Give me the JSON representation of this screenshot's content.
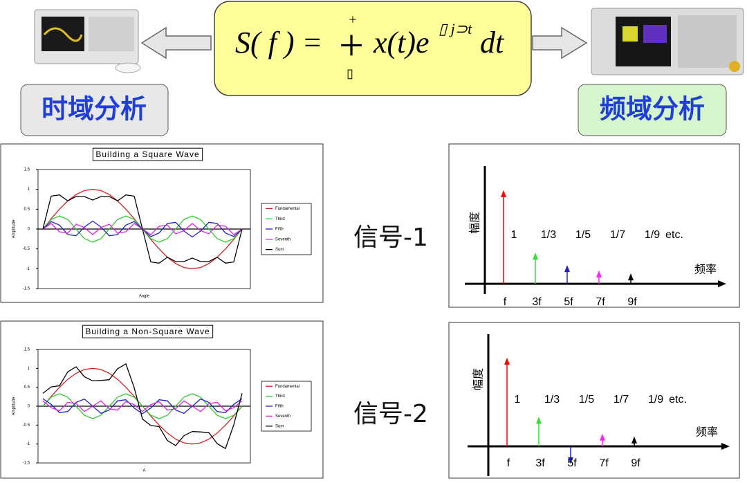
{
  "header": {
    "formula": {
      "lhs": "S( f ) =",
      "integral": "+",
      "upper": "+",
      "lower": "▯",
      "integrand": "x(t)e",
      "exponent": "▯ j⊃t",
      "differential": "dt"
    },
    "time_domain": "时域分析",
    "frequency_domain": "频域分析"
  },
  "signal_labels": [
    "信号-1",
    "信号-2"
  ],
  "chart_data": [
    {
      "type": "line",
      "title": "Building a Square Wave",
      "x_label": "Angle",
      "y_label": "Amplitude",
      "x": [
        0,
        15,
        30,
        45,
        60,
        75,
        90,
        105,
        120,
        135,
        150,
        165,
        180,
        195,
        210,
        225,
        240,
        255,
        270,
        285,
        300,
        315,
        330,
        345,
        360
      ],
      "xlim": [
        0,
        360
      ],
      "ylim": [
        -1.5,
        1.5
      ],
      "yticks": [
        1.5,
        1,
        0.5,
        0,
        -0.5,
        -1,
        -1.5
      ],
      "legend": "right",
      "series": [
        {
          "name": "Fundamental",
          "color": "#d62020",
          "values": [
            0,
            0.26,
            0.5,
            0.71,
            0.87,
            0.97,
            1,
            0.97,
            0.87,
            0.71,
            0.5,
            0.26,
            0,
            -0.26,
            -0.5,
            -0.71,
            -0.87,
            -0.97,
            -1,
            -0.97,
            -0.87,
            -0.71,
            -0.5,
            -0.26,
            0
          ]
        },
        {
          "name": "Third",
          "color": "#33cc33",
          "values": [
            0,
            0.24,
            0.33,
            0.24,
            0,
            -0.24,
            -0.33,
            -0.24,
            0,
            0.24,
            0.33,
            0.24,
            0,
            -0.24,
            -0.33,
            -0.24,
            0,
            0.24,
            0.33,
            0.24,
            0,
            -0.24,
            -0.33,
            -0.24,
            0
          ]
        },
        {
          "name": "Fifth",
          "color": "#2020c0",
          "values": [
            0,
            0.19,
            0.1,
            -0.14,
            -0.17,
            0.05,
            0.2,
            0.05,
            -0.17,
            -0.14,
            0.1,
            0.19,
            0,
            -0.19,
            -0.1,
            0.14,
            0.17,
            -0.05,
            -0.2,
            -0.05,
            0.17,
            0.14,
            -0.1,
            -0.19,
            0
          ]
        },
        {
          "name": "Seventh",
          "color": "#dd22dd",
          "values": [
            0,
            0.14,
            -0.07,
            -0.1,
            0.12,
            0.04,
            -0.14,
            0.04,
            0.12,
            -0.1,
            -0.07,
            0.14,
            0,
            -0.14,
            0.07,
            0.1,
            -0.12,
            -0.04,
            0.14,
            -0.04,
            -0.12,
            0.1,
            0.07,
            -0.14,
            0
          ]
        },
        {
          "name": "Sum",
          "color": "#000000",
          "values": [
            0,
            0.83,
            0.86,
            0.71,
            0.82,
            0.82,
            0.73,
            0.82,
            0.82,
            0.71,
            0.86,
            0.83,
            0,
            -0.83,
            -0.86,
            -0.71,
            -0.82,
            -0.82,
            -0.73,
            -0.82,
            -0.82,
            -0.71,
            -0.86,
            -0.83,
            0
          ]
        }
      ]
    },
    {
      "type": "line",
      "title": "Building a Non-Square Wave",
      "x_label": "A",
      "y_label": "Amplitude",
      "x": [
        0,
        15,
        30,
        45,
        60,
        75,
        90,
        105,
        120,
        135,
        150,
        165,
        180,
        195,
        210,
        225,
        240,
        255,
        270,
        285,
        300,
        315,
        330,
        345,
        360
      ],
      "xlim": [
        0,
        360
      ],
      "ylim": [
        -1.5,
        1.5
      ],
      "yticks": [
        1.5,
        1,
        0.5,
        0,
        -0.5,
        -1,
        -1.5
      ],
      "legend": "right",
      "series": [
        {
          "name": "Fundamental",
          "color": "#d62020",
          "values": [
            0,
            0.26,
            0.5,
            0.71,
            0.87,
            0.97,
            1,
            0.97,
            0.87,
            0.71,
            0.5,
            0.26,
            0,
            -0.26,
            -0.5,
            -0.71,
            -0.87,
            -0.97,
            -1,
            -0.97,
            -0.87,
            -0.71,
            -0.5,
            -0.26,
            0
          ]
        },
        {
          "name": "Third",
          "color": "#33cc33",
          "values": [
            0,
            0.24,
            0.33,
            0.24,
            0,
            -0.24,
            -0.33,
            -0.24,
            0,
            0.24,
            0.33,
            0.24,
            0,
            -0.24,
            -0.33,
            -0.24,
            0,
            0.24,
            0.33,
            0.24,
            0,
            -0.24,
            -0.33,
            -0.24,
            0
          ]
        },
        {
          "name": "Fifth",
          "color": "#2020c0",
          "values": [
            0.2,
            0.05,
            -0.17,
            -0.14,
            0.1,
            0.19,
            0,
            -0.19,
            -0.1,
            0.14,
            0.17,
            -0.05,
            -0.2,
            -0.05,
            0.17,
            0.14,
            -0.1,
            -0.19,
            0,
            0.19,
            0.1,
            -0.14,
            -0.17,
            0.05,
            0.2
          ]
        },
        {
          "name": "Seventh",
          "color": "#dd22dd",
          "values": [
            0.14,
            -0.04,
            -0.12,
            0.1,
            0.07,
            -0.14,
            0,
            0.14,
            -0.07,
            -0.1,
            0.12,
            0.04,
            -0.14,
            0.04,
            0.12,
            -0.1,
            -0.07,
            0.14,
            0,
            -0.14,
            0.07,
            0.1,
            -0.12,
            -0.04,
            0.14
          ]
        },
        {
          "name": "Sum",
          "color": "#000000",
          "values": [
            0.34,
            0.51,
            0.54,
            0.91,
            1.04,
            0.78,
            0.67,
            0.68,
            0.7,
            0.99,
            1.12,
            0.49,
            -0.34,
            -0.51,
            -0.54,
            -0.91,
            -1.04,
            -0.78,
            -0.67,
            -0.68,
            -0.7,
            -0.99,
            -1.12,
            -0.49,
            0.34
          ]
        }
      ]
    },
    {
      "type": "stem",
      "y_label": "幅度",
      "x_label": "频率",
      "annotation": "etc.",
      "categories": [
        "f",
        "3f",
        "5f",
        "7f",
        "9f"
      ],
      "values": [
        1,
        0.333,
        0.2,
        0.143,
        0.111
      ],
      "value_labels": [
        "1",
        "1/3",
        "1/5",
        "1/7",
        "1/9"
      ],
      "colors": [
        "#ff0000",
        "#33dd33",
        "#2020d0",
        "#ff22ff",
        "#000000"
      ],
      "ylim": [
        -0.25,
        1.25
      ]
    },
    {
      "type": "stem",
      "y_label": "幅度",
      "x_label": "频率",
      "annotation": "etc.",
      "categories": [
        "f",
        "3f",
        "5f",
        "7f",
        "9f"
      ],
      "values": [
        1,
        0.333,
        -0.2,
        0.143,
        0.111
      ],
      "value_labels": [
        "1",
        "1/3",
        "1/5",
        "1/7",
        "1/9"
      ],
      "colors": [
        "#ff0000",
        "#33dd33",
        "#2020d0",
        "#ff22ff",
        "#000000"
      ],
      "ylim": [
        -0.25,
        1.25
      ]
    }
  ]
}
